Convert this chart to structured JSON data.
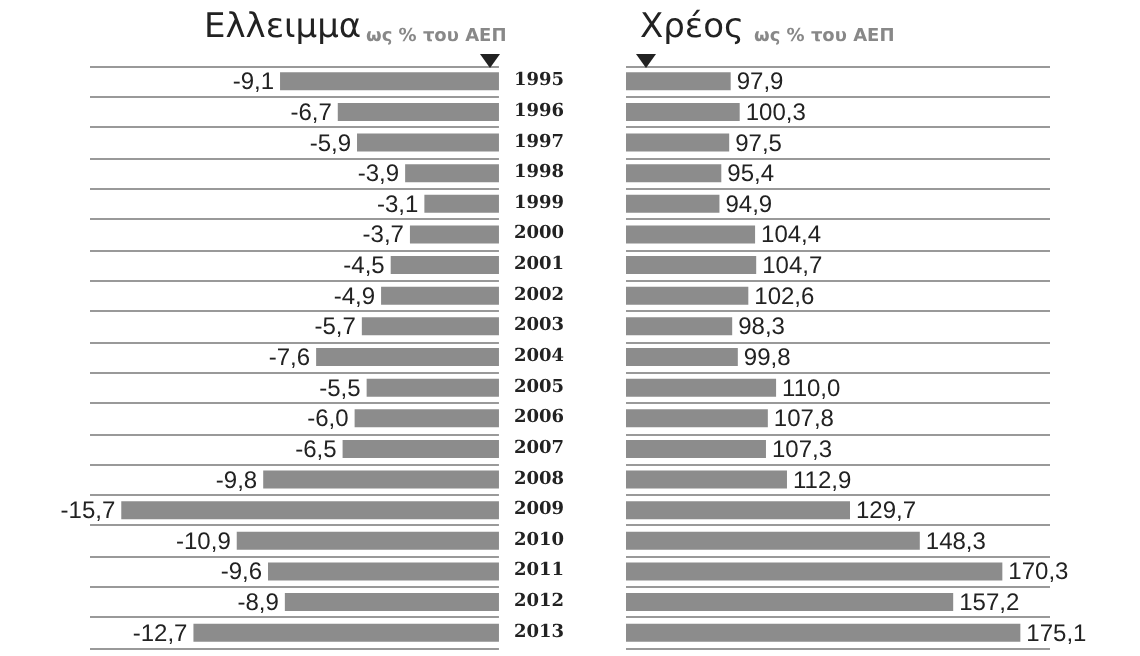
{
  "chart_data": [
    {
      "type": "bar",
      "orientation": "horizontal",
      "title": "Ελλειμμα",
      "subtitle": "ως % του ΑΕΠ",
      "categories": [
        "1995",
        "1996",
        "1997",
        "1998",
        "1999",
        "2000",
        "2001",
        "2002",
        "2003",
        "2004",
        "2005",
        "2006",
        "2007",
        "2008",
        "2009",
        "2010",
        "2011",
        "2012",
        "2013"
      ],
      "values": [
        -9.1,
        -6.7,
        -5.9,
        -3.9,
        -3.1,
        -3.7,
        -4.5,
        -4.9,
        -5.7,
        -7.6,
        -5.5,
        -6.0,
        -6.5,
        -9.8,
        -15.7,
        -10.9,
        -9.6,
        -8.9,
        -12.7
      ],
      "value_labels": [
        "-9,1",
        "-6,7",
        "-5,9",
        "-3,9",
        "-3,1",
        "-3,7",
        "-4,5",
        "-4,9",
        "-5,7",
        "-7,6",
        "-5,5",
        "-6,0",
        "-6,5",
        "-9,8",
        "-15,7",
        "-10,9",
        "-9,6",
        "-8,9",
        "-12,7"
      ],
      "color": "#8c8c8c",
      "xlim": [
        -17,
        0
      ],
      "grid": "y",
      "tick_labels": "y"
    },
    {
      "type": "bar",
      "orientation": "horizontal",
      "title": "Χρέος",
      "subtitle": "ως % του ΑΕΠ",
      "categories": [
        "1995",
        "1996",
        "1997",
        "1998",
        "1999",
        "2000",
        "2001",
        "2002",
        "2003",
        "2004",
        "2005",
        "2006",
        "2007",
        "2008",
        "2009",
        "2010",
        "2011",
        "2012",
        "2013"
      ],
      "values": [
        97.9,
        100.3,
        97.5,
        95.4,
        94.9,
        104.4,
        104.7,
        102.6,
        98.3,
        99.8,
        110.0,
        107.8,
        107.3,
        112.9,
        129.7,
        148.3,
        170.3,
        157.2,
        175.1
      ],
      "value_labels": [
        "97,9",
        "100,3",
        "97,5",
        "95,4",
        "94,9",
        "104,4",
        "104,7",
        "102,6",
        "98,3",
        "99,8",
        "110,0",
        "107,8",
        "107,3",
        "112,9",
        "129,7",
        "148,3",
        "170,3",
        "157,2",
        "175,1"
      ],
      "color": "#8c8c8c",
      "xlim": [
        70,
        183
      ],
      "grid": "y",
      "tick_labels": false
    }
  ]
}
